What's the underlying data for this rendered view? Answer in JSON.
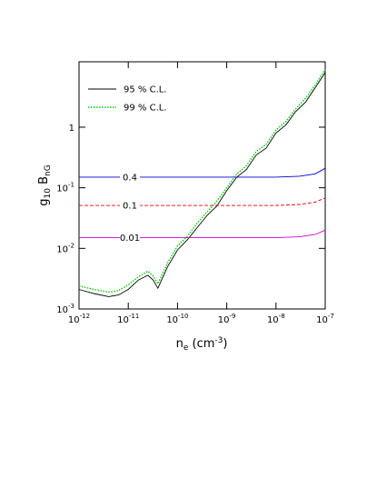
{
  "chart_data": {
    "type": "line",
    "xscale": "log",
    "yscale": "log",
    "xlabel": {
      "base": "n",
      "sub": "e",
      "mid": " (cm",
      "sup": "-3",
      "end": ")"
    },
    "ylabel": {
      "base": "g",
      "sub": "10",
      "mid": " B",
      "sub2": "nG"
    },
    "xlim": [
      1e-12,
      1e-07
    ],
    "ylim": [
      0.001,
      12
    ],
    "xticks": [
      {
        "value": 1e-12,
        "label": "10",
        "exp": "-12"
      },
      {
        "value": 1e-11,
        "label": "10",
        "exp": "-11"
      },
      {
        "value": 1e-10,
        "label": "10",
        "exp": "-10"
      },
      {
        "value": 1e-09,
        "label": "10",
        "exp": "-9"
      },
      {
        "value": 1e-08,
        "label": "10",
        "exp": "-8"
      },
      {
        "value": 1e-07,
        "label": "10",
        "exp": "-7"
      }
    ],
    "yticks": [
      {
        "value": 0.001,
        "label": "10",
        "exp": "-3"
      },
      {
        "value": 0.01,
        "label": "10",
        "exp": "-2"
      },
      {
        "value": 0.1,
        "label": "10",
        "exp": "-1"
      },
      1
    ],
    "legend": "upper-left",
    "series": [
      {
        "name": "95 % C.L.",
        "color": "#000000",
        "dash": "solid",
        "x": [
          1e-12,
          2e-12,
          4e-12,
          6.3e-12,
          1e-11,
          1.6e-11,
          2.5e-11,
          3.2e-11,
          4e-11,
          6.3e-11,
          1e-10,
          1.6e-10,
          2.5e-10,
          4e-10,
          6.3e-10,
          1e-09,
          1.6e-09,
          2.5e-09,
          4e-09,
          6.3e-09,
          1e-08,
          1.6e-08,
          2.5e-08,
          4e-08,
          6.3e-08,
          1e-07
        ],
        "values": [
          0.0021,
          0.0018,
          0.0016,
          0.0017,
          0.0021,
          0.003,
          0.0036,
          0.003,
          0.0022,
          0.005,
          0.0094,
          0.014,
          0.022,
          0.035,
          0.05,
          0.09,
          0.15,
          0.2,
          0.35,
          0.45,
          0.8,
          1.1,
          1.8,
          2.6,
          4.5,
          8
        ]
      },
      {
        "name": "99 % C.L.",
        "color": "#00cc00",
        "dash": "dotted",
        "x": [
          1e-12,
          2e-12,
          4e-12,
          6.3e-12,
          1e-11,
          1.6e-11,
          2.5e-11,
          3.2e-11,
          4e-11,
          6.3e-11,
          1e-10,
          1.6e-10,
          2.5e-10,
          4e-10,
          6.3e-10,
          1e-09,
          1.6e-09,
          2.5e-09,
          4e-09,
          6.3e-09,
          1e-08,
          1.6e-08,
          2.5e-08,
          4e-08,
          6.3e-08,
          1e-07
        ],
        "values": [
          0.0024,
          0.0021,
          0.0019,
          0.002,
          0.0025,
          0.0034,
          0.0042,
          0.0035,
          0.0026,
          0.0058,
          0.011,
          0.016,
          0.026,
          0.04,
          0.06,
          0.1,
          0.17,
          0.23,
          0.4,
          0.52,
          0.9,
          1.25,
          2,
          3,
          5,
          9
        ]
      },
      {
        "label": "0.4",
        "color": "#0000cc",
        "dash": "solid",
        "x": [
          1e-12,
          1e-08,
          3e-08,
          6.3e-08,
          1e-07
        ],
        "values": [
          0.15,
          0.15,
          0.155,
          0.17,
          0.21
        ]
      },
      {
        "label": "0.1",
        "color": "#dd0000",
        "dash": "dashed",
        "x": [
          1e-12,
          1e-08,
          3e-08,
          6.3e-08,
          1e-07
        ],
        "values": [
          0.051,
          0.051,
          0.053,
          0.058,
          0.068
        ]
      },
      {
        "label": "0.01",
        "color": "#cc00cc",
        "dash": "solid",
        "x": [
          1e-12,
          1e-08,
          3e-08,
          6.3e-08,
          1e-07
        ],
        "values": [
          0.015,
          0.015,
          0.0155,
          0.017,
          0.02
        ]
      }
    ]
  }
}
